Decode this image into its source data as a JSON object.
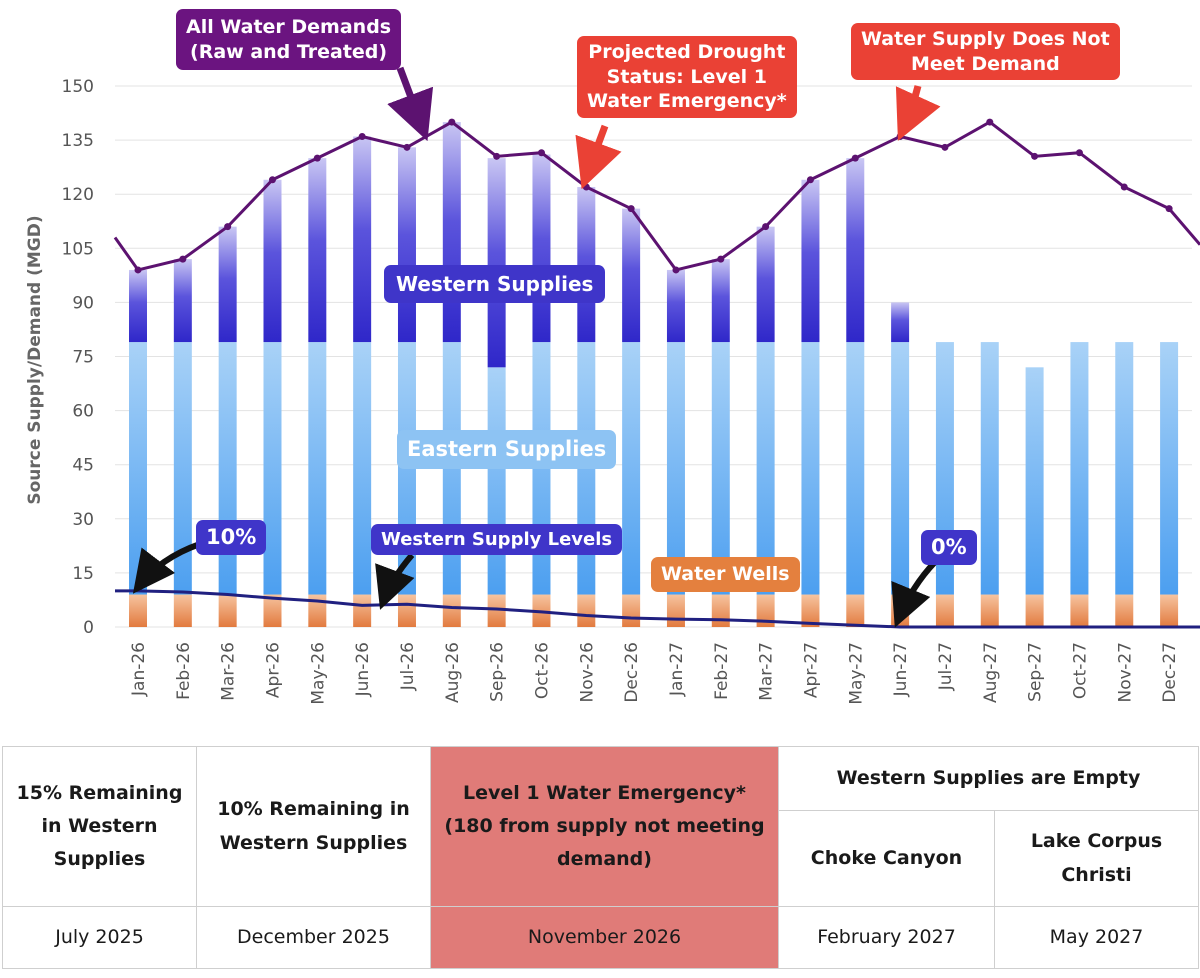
{
  "chart_data": {
    "type": "bar",
    "ylabel": "Source Supply/Demand (MGD)",
    "ylim": [
      0,
      150
    ],
    "yticks": [
      "0",
      "15",
      "30",
      "45",
      "60",
      "75",
      "90",
      "105",
      "120",
      "135",
      "150"
    ],
    "categories": [
      "Jan-26",
      "Feb-26",
      "Mar-26",
      "Apr-26",
      "May-26",
      "Jun-26",
      "Jul-26",
      "Aug-26",
      "Sep-26",
      "Oct-26",
      "Nov-26",
      "Dec-26",
      "Jan-27",
      "Feb-27",
      "Mar-27",
      "Apr-27",
      "May-27",
      "Jun-27",
      "Jul-27",
      "Aug-27",
      "Sep-27",
      "Oct-27",
      "Nov-27",
      "Dec-27"
    ],
    "series": [
      {
        "name": "Water Wells",
        "type": "bar",
        "color": "#e98a4e",
        "values": [
          9,
          9,
          9,
          9,
          9,
          9,
          9,
          9,
          9,
          9,
          9,
          9,
          9,
          9,
          9,
          9,
          9,
          9,
          9,
          9,
          9,
          9,
          9,
          9
        ]
      },
      {
        "name": "Eastern Supplies",
        "type": "bar",
        "color": "#5aa7ef",
        "values": [
          70,
          70,
          70,
          70,
          70,
          70,
          70,
          70,
          63,
          70,
          70,
          70,
          70,
          70,
          70,
          70,
          70,
          70,
          70,
          70,
          63,
          70,
          70,
          70
        ]
      },
      {
        "name": "Western Supplies",
        "type": "bar",
        "color": "#3b2fd0",
        "values": [
          20,
          23,
          32,
          45,
          51,
          57,
          54,
          61,
          58,
          52,
          43,
          37,
          20,
          23,
          32,
          45,
          51,
          11,
          0,
          0,
          0,
          0,
          0,
          0
        ]
      },
      {
        "name": "All Water Demands (Raw and Treated)",
        "type": "line",
        "color": "#5c1270",
        "values": [
          99,
          102,
          111,
          124,
          130,
          136,
          133,
          140,
          130.5,
          131.5,
          122,
          116,
          99,
          102,
          111,
          124,
          130,
          136,
          133,
          140,
          130.5,
          131.5,
          122,
          116
        ]
      },
      {
        "name": "Western Supply Levels",
        "type": "line",
        "color": "#202080",
        "values": [
          10,
          9.7,
          9,
          8,
          7.2,
          6,
          6.3,
          5.4,
          5,
          4.2,
          3.2,
          2.5,
          2.2,
          2,
          1.6,
          1,
          0.5,
          0,
          0,
          0,
          0,
          0,
          0,
          0
        ]
      }
    ]
  },
  "callouts": {
    "all_demands": "All Water Demands\n(Raw and Treated)",
    "drought": "Projected Drought\nStatus: Level 1\nWater Emergency*",
    "not_meet": "Water Supply Does Not\nMeet Demand",
    "western_supplies": "Western Supplies",
    "eastern_supplies": "Eastern Supplies",
    "western_levels": "Western Supply Levels",
    "water_wells": "Water Wells",
    "pct_10": "10%",
    "pct_0": "0%"
  },
  "table": {
    "c1_head": "15% Remaining in Western Supplies",
    "c2_head": "10% Remaining in Western Supplies",
    "c3_head": "Level 1 Water Emergency*\n(180 from supply not meeting demand)",
    "c4_group": "Western Supplies are Empty",
    "c4a_head": "Choke Canyon",
    "c4b_head": "Lake Corpus Christi",
    "c1_val": "July 2025",
    "c2_val": "December 2025",
    "c3_val": "November 2026",
    "c4a_val": "February 2027",
    "c4b_val": "May 2027"
  },
  "colors": {
    "demand_line": "#5c1270",
    "levels_line": "#202080",
    "western": "#3b2fd0",
    "eastern": "#5aa7ef",
    "wells": "#e98a4e",
    "highlight": "#e07b78"
  }
}
